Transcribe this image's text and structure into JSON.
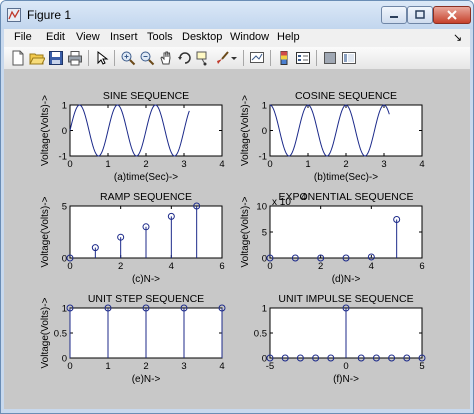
{
  "window": {
    "title": "Figure 1",
    "icon": "matlab-figure-icon",
    "controls": [
      "minimize-icon",
      "maximize-icon",
      "close-icon"
    ],
    "colors": {
      "frame": "#c8d9ee",
      "close": "#c6412c",
      "figure_bg": "#c8c8c8",
      "line": "#1c2a8a"
    }
  },
  "menu": {
    "items": [
      "File",
      "Edit",
      "View",
      "Insert",
      "Tools",
      "Desktop",
      "Window",
      "Help"
    ],
    "dock_glyph": "↘"
  },
  "toolbar": {
    "icons": [
      "new-figure-icon",
      "open-file-icon",
      "save-icon",
      "print-icon",
      "select-arrow-icon",
      "zoom-in-icon",
      "zoom-out-icon",
      "pan-icon",
      "rotate-3d-icon",
      "data-cursor-icon",
      "brush-icon",
      "brush-dropdown-icon",
      "link-plot-icon",
      "colorbar-icon",
      "legend-icon",
      "hide-plot-tools-icon",
      "show-plot-tools-icon"
    ]
  },
  "chart_data": [
    {
      "type": "line",
      "title": "SINE SEQUENCE",
      "xlabel": "(a)time(Sec)->",
      "ylabel": "Voltage(Volts)->",
      "xlim": [
        0,
        4
      ],
      "ylim": [
        -1,
        1
      ],
      "xticks": [
        0,
        1,
        2,
        3,
        4
      ],
      "yticks": [
        -1,
        0,
        1
      ],
      "function": "sin",
      "frequency_hz": 1,
      "t_range": [
        0,
        3.14
      ],
      "series": [
        {
          "values_at_t": {
            "t": [
              0,
              0.25,
              0.5,
              0.75,
              1,
              1.25,
              1.5,
              1.75,
              2,
              2.25,
              2.5,
              2.75,
              3,
              3.14
            ],
            "y": [
              0,
              1,
              0,
              -1,
              0,
              1,
              0,
              -1,
              0,
              1,
              0,
              -1,
              0,
              0.77
            ]
          }
        }
      ]
    },
    {
      "type": "line",
      "title": "COSINE SEQUENCE",
      "xlabel": "(b)time(Sec)->",
      "ylabel": "Voltage(Volts)->",
      "xlim": [
        0,
        4
      ],
      "ylim": [
        -1,
        1
      ],
      "xticks": [
        0,
        1,
        2,
        3,
        4
      ],
      "yticks": [
        -1,
        0,
        1
      ],
      "function": "cos",
      "frequency_hz": 1,
      "t_range": [
        0,
        3.14
      ],
      "series": [
        {
          "values_at_t": {
            "t": [
              0,
              0.25,
              0.5,
              0.75,
              1,
              1.25,
              1.5,
              1.75,
              2,
              2.25,
              2.5,
              2.75,
              3,
              3.14
            ],
            "y": [
              1,
              0,
              -1,
              0,
              1,
              0,
              -1,
              0,
              1,
              0,
              -1,
              0,
              1,
              0.63
            ]
          }
        }
      ]
    },
    {
      "type": "stem",
      "title": "RAMP SEQUENCE",
      "xlabel": "(c)N->",
      "ylabel": "Voltage(Volts)->",
      "xlim": [
        0,
        6
      ],
      "ylim": [
        0,
        5
      ],
      "xticks": [
        0,
        2,
        4,
        6
      ],
      "yticks": [
        0,
        5
      ],
      "x": [
        0,
        1,
        2,
        3,
        4,
        5
      ],
      "values": [
        0,
        1,
        2,
        3,
        4,
        5
      ]
    },
    {
      "type": "stem",
      "title": "EXPONENTIAL SEQUENCE",
      "xlabel": "(d)N->",
      "ylabel": "Voltage(Volts)->",
      "exponent_label": "x 10",
      "exponent_power": "4",
      "xlim": [
        0,
        6
      ],
      "ylim": [
        0,
        10
      ],
      "xticks": [
        0,
        2,
        4,
        6
      ],
      "yticks": [
        0,
        5,
        10
      ],
      "x": [
        0,
        1,
        2,
        3,
        4,
        5
      ],
      "values": [
        0,
        0,
        0,
        0,
        0.2,
        7.4
      ]
    },
    {
      "type": "stem",
      "title": "UNIT STEP SEQUENCE",
      "xlabel": "(e)N->",
      "ylabel": "Voltage(Volts)->",
      "xlim": [
        0,
        4
      ],
      "ylim": [
        0,
        1
      ],
      "xticks": [
        0,
        1,
        2,
        3,
        4
      ],
      "yticks": [
        0,
        0.5,
        1
      ],
      "x": [
        0,
        1,
        2,
        3,
        4
      ],
      "values": [
        1,
        1,
        1,
        1,
        1
      ]
    },
    {
      "type": "stem",
      "title": "UNIT IMPULSE SEQUENCE",
      "xlabel": "(f)N->",
      "ylabel": "",
      "xlim": [
        -5,
        5
      ],
      "ylim": [
        0,
        1
      ],
      "xticks": [
        -5,
        0,
        5
      ],
      "yticks": [
        0,
        0.5,
        1
      ],
      "x": [
        -5,
        -4,
        -3,
        -2,
        -1,
        0,
        1,
        2,
        3,
        4,
        5
      ],
      "values": [
        0,
        0,
        0,
        0,
        0,
        1,
        0,
        0,
        0,
        0,
        0
      ]
    }
  ]
}
